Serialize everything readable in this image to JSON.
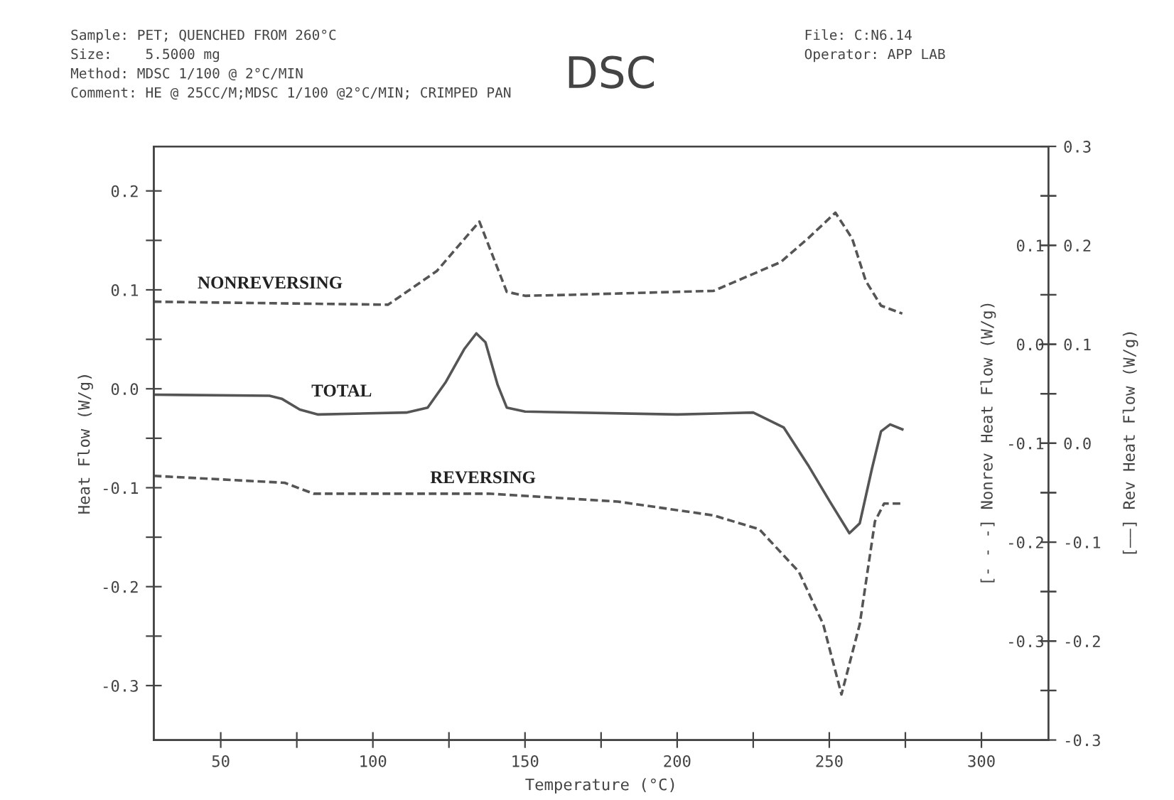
{
  "chart_data": {
    "type": "line",
    "title": "DSC",
    "xlabel": "Temperature (°C)",
    "ylabel": "Heat Flow (W/g)",
    "y2label": "[- - -] Nonrev Heat Flow (W/g)",
    "y3label": "[——] Rev Heat Flow (W/g)",
    "annotations": [
      "Sample: PET; QUENCHED FROM 260°C",
      "Size:    5.5000 mg",
      "Method: MDSC 1/100 @ 2°C/MIN",
      "Comment: HE @ 25CC/M;MDSC 1/100 @2°C/MIN; CRIMPED PAN",
      "File: C:N6.14",
      "Operator: APP LAB",
      "NONREVERSING",
      "TOTAL",
      "REVERSING"
    ],
    "xlim": [
      28,
      322
    ],
    "xticks": [
      50,
      {
        "value": 75,
        "label": null
      },
      100,
      {
        "value": 125,
        "label": null
      },
      150,
      {
        "value": 175,
        "label": null
      },
      200,
      {
        "value": 225,
        "label": null
      },
      250,
      {
        "value": 275,
        "label": null
      },
      300
    ],
    "ylim": [
      -0.355,
      0.245
    ],
    "yticks": [
      {
        "value": -0.3,
        "label": "-0.3"
      },
      {
        "value": -0.25,
        "label": null
      },
      {
        "value": -0.2,
        "label": "-0.2"
      },
      {
        "value": -0.15,
        "label": null
      },
      {
        "value": -0.1,
        "label": "-0.1"
      },
      {
        "value": -0.05,
        "label": null
      },
      {
        "value": 0.0,
        "label": "0.0"
      },
      {
        "value": 0.05,
        "label": null
      },
      {
        "value": 0.1,
        "label": "0.1"
      },
      {
        "value": 0.15,
        "label": null
      },
      {
        "value": 0.2,
        "label": "0.2"
      }
    ],
    "y2lim": [
      -0.4,
      0.2
    ],
    "y2ticks": [
      {
        "value": -0.35,
        "label": null
      },
      {
        "value": -0.3,
        "label": "-0.3"
      },
      {
        "value": -0.25,
        "label": null
      },
      {
        "value": -0.2,
        "label": "-0.2"
      },
      {
        "value": -0.15,
        "label": null
      },
      {
        "value": -0.1,
        "label": "-0.1"
      },
      {
        "value": -0.05,
        "label": null
      },
      {
        "value": 0.0,
        "label": "0.0"
      },
      {
        "value": 0.05,
        "label": null
      },
      {
        "value": 0.1,
        "label": "0.1"
      },
      {
        "value": 0.15,
        "label": null
      }
    ],
    "y3lim": [
      -0.3,
      0.3
    ],
    "y3ticks": [
      {
        "value": -0.3,
        "label": "-0.3"
      },
      {
        "value": -0.25,
        "label": null
      },
      {
        "value": -0.2,
        "label": "-0.2"
      },
      {
        "value": -0.15,
        "label": null
      },
      {
        "value": -0.1,
        "label": "-0.1"
      },
      {
        "value": -0.05,
        "label": null
      },
      {
        "value": 0.0,
        "label": "0.0"
      },
      {
        "value": 0.05,
        "label": null
      },
      {
        "value": 0.1,
        "label": "0.1"
      },
      {
        "value": 0.15,
        "label": null
      },
      {
        "value": 0.2,
        "label": "0.2"
      },
      {
        "value": 0.25,
        "label": null
      },
      {
        "value": 0.3,
        "label": "0.3"
      }
    ],
    "grid": false,
    "marker": "none",
    "series": [
      {
        "color": "#555555",
        "line_style": "solid",
        "x": [
          28,
          66,
          70,
          76,
          82,
          111,
          118,
          124,
          130,
          134,
          137,
          141,
          144,
          150,
          200,
          225,
          235,
          243,
          250,
          256.6,
          260,
          264,
          267,
          270,
          274
        ],
        "values": [
          -0.006,
          -0.007,
          -0.01,
          -0.021,
          -0.026,
          -0.024,
          -0.019,
          0.007,
          0.04,
          0.056,
          0.047,
          0.004,
          -0.019,
          -0.023,
          -0.026,
          -0.024,
          -0.039,
          -0.077,
          -0.113,
          -0.146,
          -0.136,
          -0.081,
          -0.043,
          -0.036,
          -0.041
        ]
      },
      {
        "color": "#555555",
        "line_style": "dashed",
        "axis": "y2",
        "x": [
          28,
          105,
          121,
          135,
          144,
          150,
          165,
          212,
          234,
          243,
          252,
          257.5,
          262,
          267,
          274
        ],
        "values": [
          0.043,
          0.04,
          0.074,
          0.124,
          0.053,
          0.049,
          0.05,
          0.054,
          0.083,
          0.107,
          0.133,
          0.107,
          0.064,
          0.039,
          0.031
        ]
      },
      {
        "color": "#555555",
        "line_style": "dashed",
        "axis": "y3",
        "x": [
          28,
          71,
          80.5,
          138,
          180.5,
          212,
          227,
          240,
          248,
          254,
          260,
          265,
          268,
          274
        ],
        "values": [
          -0.033,
          -0.04,
          -0.051,
          -0.051,
          -0.059,
          -0.073,
          -0.087,
          -0.13,
          -0.183,
          -0.254,
          -0.183,
          -0.079,
          -0.061,
          -0.061
        ]
      }
    ]
  }
}
